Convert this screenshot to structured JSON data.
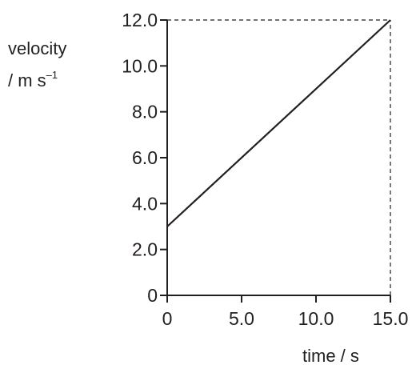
{
  "chart_data": {
    "type": "line",
    "ylabel_line1": "velocity",
    "ylabel_line2": "/ m s",
    "ylabel_unit_exponent": "–1",
    "xlabel": "time / s",
    "xlim": [
      0,
      15
    ],
    "ylim": [
      0,
      12
    ],
    "x_ticks": [
      0,
      5,
      10,
      15
    ],
    "y_ticks": [
      0,
      2,
      4,
      6,
      8,
      10,
      12
    ],
    "x_tick_labels": [
      "0",
      "5.0",
      "10.0",
      "15.0"
    ],
    "y_tick_labels": [
      "0",
      "2.0",
      "4.0",
      "6.0",
      "8.0",
      "10.0",
      "12.0"
    ],
    "grid": false,
    "series": [
      {
        "x": [
          0,
          15
        ],
        "y": [
          3.0,
          12.0
        ]
      }
    ],
    "reference_lines": [
      {
        "style": "dashed",
        "x": [
          0,
          15
        ],
        "y": [
          12,
          12
        ]
      },
      {
        "style": "dashed",
        "x": [
          15,
          15
        ],
        "y": [
          0,
          12
        ]
      }
    ]
  }
}
